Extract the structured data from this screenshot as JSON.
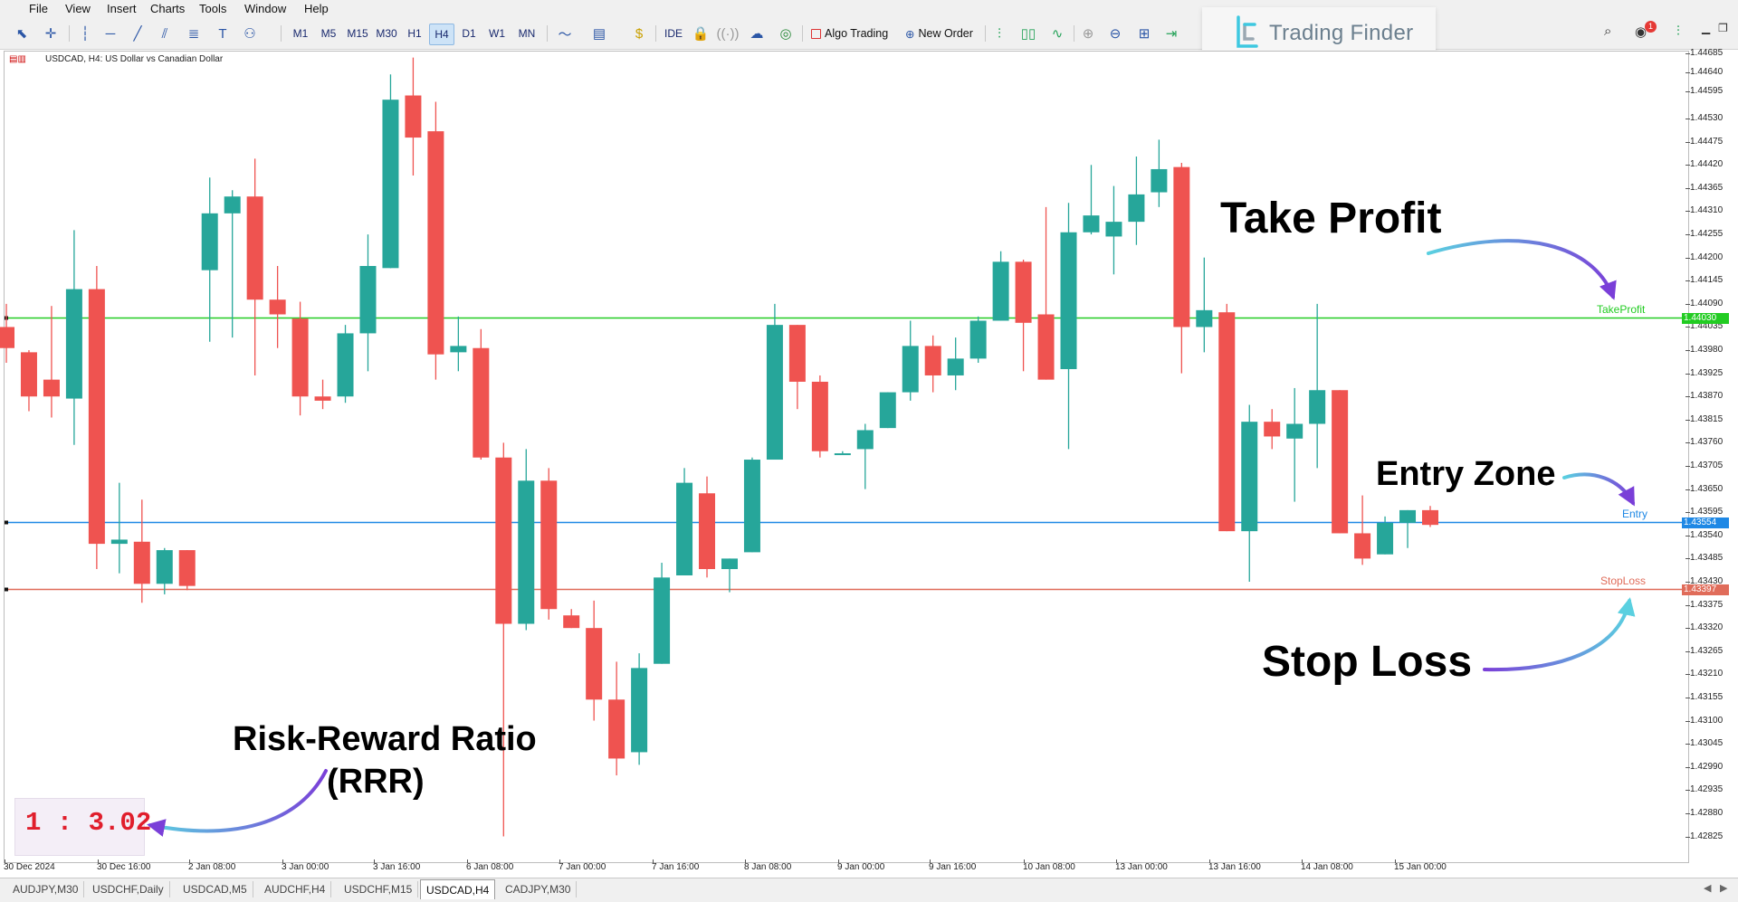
{
  "menu": [
    "File",
    "View",
    "Insert",
    "Charts",
    "Tools",
    "Window",
    "Help"
  ],
  "toolbar": {
    "timeframes": [
      "M1",
      "M5",
      "M15",
      "M30",
      "H1",
      "H4",
      "D1",
      "W1",
      "MN"
    ],
    "active_timeframe": "H4",
    "ide": "IDE",
    "algo_trading": "Algo Trading",
    "new_order": "New Order",
    "notification_count": "1"
  },
  "logo": {
    "text": "Trading Finder"
  },
  "chart": {
    "symbol_label": "USDCAD, H4:  US Dollar vs Canadian Dollar",
    "price_ticks": [
      "1.44685",
      "1.44640",
      "1.44595",
      "1.44530",
      "1.44475",
      "1.44420",
      "1.44365",
      "1.44310",
      "1.44255",
      "1.44200",
      "1.44145",
      "1.44090",
      "1.44035",
      "1.43980",
      "1.43925",
      "1.43870",
      "1.43815",
      "1.43760",
      "1.43705",
      "1.43650",
      "1.43595",
      "1.43540",
      "1.43485",
      "1.43430",
      "1.43375",
      "1.43320",
      "1.43265",
      "1.43210",
      "1.43155",
      "1.43100",
      "1.43045",
      "1.42990",
      "1.42935",
      "1.42880",
      "1.42825"
    ],
    "time_labels": [
      "30 Dec 2024",
      "30 Dec 16:00",
      "2 Jan 08:00",
      "3 Jan 00:00",
      "3 Jan 16:00",
      "6 Jan 08:00",
      "7 Jan 00:00",
      "7 Jan 16:00",
      "8 Jan 08:00",
      "9 Jan 00:00",
      "9 Jan 16:00",
      "10 Jan 08:00",
      "13 Jan 00:00",
      "13 Jan 16:00",
      "14 Jan 08:00",
      "15 Jan 00:00"
    ],
    "levels": {
      "take_profit": {
        "label": "TakeProfit",
        "price_tag": "1.44030",
        "color": "#22cc22"
      },
      "entry": {
        "label": "Entry",
        "price_tag": "1.43554",
        "color": "#1e88e5"
      },
      "stop_loss": {
        "label": "StopLoss",
        "price_tag": "1.43397",
        "color": "#e06c5a"
      }
    },
    "colors": {
      "bull": "#26a69a",
      "bear": "#ef5350"
    },
    "candles": [
      {
        "o": 1.44035,
        "h": 1.4409,
        "l": 1.4395,
        "c": 1.43985
      },
      {
        "o": 1.43975,
        "h": 1.4398,
        "l": 1.43835,
        "c": 1.4387
      },
      {
        "o": 1.4391,
        "h": 1.44085,
        "l": 1.4382,
        "c": 1.4387
      },
      {
        "o": 1.43865,
        "h": 1.44265,
        "l": 1.43755,
        "c": 1.44125
      },
      {
        "o": 1.44125,
        "h": 1.4418,
        "l": 1.4346,
        "c": 1.4352
      },
      {
        "o": 1.4352,
        "h": 1.43665,
        "l": 1.4345,
        "c": 1.4353
      },
      {
        "o": 1.43525,
        "h": 1.43625,
        "l": 1.4338,
        "c": 1.43425
      },
      {
        "o": 1.43425,
        "h": 1.4351,
        "l": 1.434,
        "c": 1.43505
      },
      {
        "o": 1.43505,
        "h": 1.43505,
        "l": 1.4341,
        "c": 1.4342
      },
      {
        "o": 1.4417,
        "h": 1.4439,
        "l": 1.44,
        "c": 1.44305
      },
      {
        "o": 1.44305,
        "h": 1.4436,
        "l": 1.4401,
        "c": 1.44345
      },
      {
        "o": 1.44345,
        "h": 1.44435,
        "l": 1.4392,
        "c": 1.441
      },
      {
        "o": 1.441,
        "h": 1.4418,
        "l": 1.43985,
        "c": 1.44065
      },
      {
        "o": 1.44055,
        "h": 1.44095,
        "l": 1.43825,
        "c": 1.4387
      },
      {
        "o": 1.4387,
        "h": 1.4391,
        "l": 1.4384,
        "c": 1.4386
      },
      {
        "o": 1.4387,
        "h": 1.4404,
        "l": 1.43855,
        "c": 1.4402
      },
      {
        "o": 1.4402,
        "h": 1.44255,
        "l": 1.4393,
        "c": 1.4418
      },
      {
        "o": 1.44175,
        "h": 1.44635,
        "l": 1.44175,
        "c": 1.44575
      },
      {
        "o": 1.44585,
        "h": 1.44675,
        "l": 1.44395,
        "c": 1.44485
      },
      {
        "o": 1.445,
        "h": 1.4457,
        "l": 1.4391,
        "c": 1.4397
      },
      {
        "o": 1.43975,
        "h": 1.4406,
        "l": 1.4393,
        "c": 1.4399
      },
      {
        "o": 1.43985,
        "h": 1.4403,
        "l": 1.4372,
        "c": 1.43725
      },
      {
        "o": 1.43725,
        "h": 1.4376,
        "l": 1.42825,
        "c": 1.4333
      },
      {
        "o": 1.4333,
        "h": 1.43745,
        "l": 1.43315,
        "c": 1.4367
      },
      {
        "o": 1.4367,
        "h": 1.437,
        "l": 1.4334,
        "c": 1.43365
      },
      {
        "o": 1.4335,
        "h": 1.43365,
        "l": 1.4332,
        "c": 1.4332
      },
      {
        "o": 1.4332,
        "h": 1.43385,
        "l": 1.431,
        "c": 1.4315
      },
      {
        "o": 1.4315,
        "h": 1.4324,
        "l": 1.4297,
        "c": 1.4301
      },
      {
        "o": 1.43025,
        "h": 1.4326,
        "l": 1.42995,
        "c": 1.43225
      },
      {
        "o": 1.43235,
        "h": 1.43475,
        "l": 1.43235,
        "c": 1.4344
      },
      {
        "o": 1.43445,
        "h": 1.437,
        "l": 1.43445,
        "c": 1.43665
      },
      {
        "o": 1.4364,
        "h": 1.4368,
        "l": 1.4344,
        "c": 1.4346
      },
      {
        "o": 1.4346,
        "h": 1.43485,
        "l": 1.43405,
        "c": 1.43485
      },
      {
        "o": 1.435,
        "h": 1.43725,
        "l": 1.435,
        "c": 1.4372
      },
      {
        "o": 1.4372,
        "h": 1.4409,
        "l": 1.4372,
        "c": 1.4404
      },
      {
        "o": 1.4404,
        "h": 1.4404,
        "l": 1.4384,
        "c": 1.43905
      },
      {
        "o": 1.43905,
        "h": 1.4392,
        "l": 1.43725,
        "c": 1.4374
      },
      {
        "o": 1.43735,
        "h": 1.4374,
        "l": 1.43735,
        "c": 1.43735
      },
      {
        "o": 1.43745,
        "h": 1.43805,
        "l": 1.4365,
        "c": 1.4379
      },
      {
        "o": 1.43795,
        "h": 1.4388,
        "l": 1.43795,
        "c": 1.4388
      },
      {
        "o": 1.4388,
        "h": 1.4405,
        "l": 1.4386,
        "c": 1.4399
      },
      {
        "o": 1.4399,
        "h": 1.44015,
        "l": 1.4388,
        "c": 1.4392
      },
      {
        "o": 1.4392,
        "h": 1.4401,
        "l": 1.43885,
        "c": 1.4396
      },
      {
        "o": 1.4396,
        "h": 1.4406,
        "l": 1.4395,
        "c": 1.4405
      },
      {
        "o": 1.4405,
        "h": 1.44215,
        "l": 1.4405,
        "c": 1.4419
      },
      {
        "o": 1.4419,
        "h": 1.44195,
        "l": 1.4393,
        "c": 1.44045
      },
      {
        "o": 1.44065,
        "h": 1.4432,
        "l": 1.4391,
        "c": 1.4391
      },
      {
        "o": 1.43935,
        "h": 1.4433,
        "l": 1.43745,
        "c": 1.4426
      },
      {
        "o": 1.4426,
        "h": 1.4442,
        "l": 1.44255,
        "c": 1.443
      },
      {
        "o": 1.4425,
        "h": 1.4437,
        "l": 1.4416,
        "c": 1.44285
      },
      {
        "o": 1.44285,
        "h": 1.4444,
        "l": 1.4423,
        "c": 1.4435
      },
      {
        "o": 1.44355,
        "h": 1.4448,
        "l": 1.4432,
        "c": 1.4441
      },
      {
        "o": 1.44415,
        "h": 1.44425,
        "l": 1.43925,
        "c": 1.44035
      },
      {
        "o": 1.44035,
        "h": 1.442,
        "l": 1.43975,
        "c": 1.44075
      },
      {
        "o": 1.4407,
        "h": 1.4409,
        "l": 1.4355,
        "c": 1.4355
      },
      {
        "o": 1.4355,
        "h": 1.4385,
        "l": 1.4343,
        "c": 1.4381
      },
      {
        "o": 1.4381,
        "h": 1.4384,
        "l": 1.43745,
        "c": 1.43775
      },
      {
        "o": 1.4377,
        "h": 1.4389,
        "l": 1.4362,
        "c": 1.43805
      },
      {
        "o": 1.43805,
        "h": 1.4409,
        "l": 1.437,
        "c": 1.43885
      },
      {
        "o": 1.43885,
        "h": 1.43885,
        "l": 1.43545,
        "c": 1.43545
      },
      {
        "o": 1.43545,
        "h": 1.43635,
        "l": 1.4347,
        "c": 1.43485
      },
      {
        "o": 1.43495,
        "h": 1.43585,
        "l": 1.43495,
        "c": 1.4357
      },
      {
        "o": 1.4357,
        "h": 1.436,
        "l": 1.4351,
        "c": 1.436
      },
      {
        "o": 1.436,
        "h": 1.4361,
        "l": 1.4356,
        "c": 1.43565
      }
    ]
  },
  "annotations": {
    "take_profit": "Take Profit",
    "entry_zone": "Entry Zone",
    "stop_loss": "Stop Loss",
    "rrr_line1": "Risk-Reward Ratio",
    "rrr_line2": "(RRR)",
    "rrr_value": "1 : 3.02",
    "arrow_color": "#5ad0e0",
    "arrow_head_color": "#7a3fd8"
  },
  "tabs": [
    "AUDJPY,M30",
    "USDCHF,Daily",
    "USDCAD,M5",
    "AUDCHF,H4",
    "USDCHF,M15",
    "USDCAD,H4",
    "CADJPY,M30"
  ],
  "active_tab": "USDCAD,H4"
}
